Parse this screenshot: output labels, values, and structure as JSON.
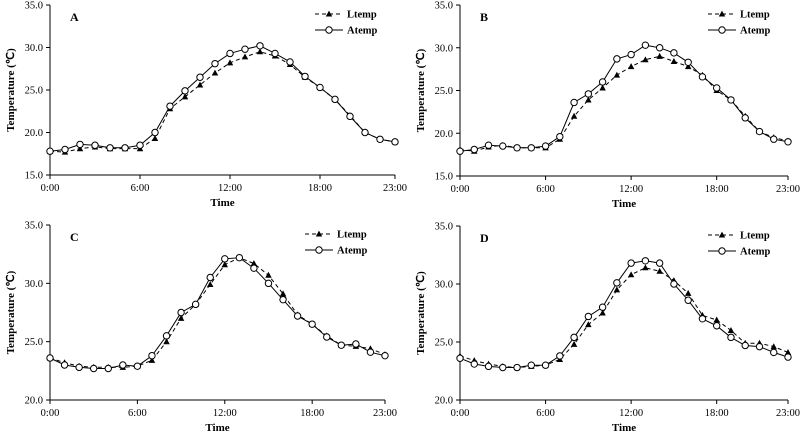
{
  "chart_data": [
    {
      "type": "line",
      "panel_label": "A",
      "xlabel": "Time",
      "ylabel": "Temperature (℃)",
      "ylim": [
        15,
        35
      ],
      "yticks": [
        "15.0",
        "20.0",
        "25.0",
        "30.0",
        "35.0"
      ],
      "xlim": [
        0,
        23
      ],
      "xticks": [
        0,
        6,
        12,
        18,
        23
      ],
      "xtick_labels": [
        "0:00",
        "6:00",
        "12:00",
        "18:00",
        "23:00"
      ],
      "grid": false,
      "legend_position": "top-right",
      "series": [
        {
          "name": "Ltemp",
          "style": "dashed-triangle",
          "x": [
            0,
            1,
            2,
            3,
            4,
            5,
            6,
            7,
            8,
            9,
            10,
            11,
            12,
            13,
            14,
            15,
            16,
            17,
            18,
            19,
            20,
            21,
            22,
            23
          ],
          "values": [
            17.8,
            17.7,
            18.1,
            18.3,
            18.1,
            18.1,
            18.1,
            19.3,
            22.8,
            24.2,
            25.6,
            27.0,
            28.2,
            28.9,
            29.5,
            29.0,
            28.0,
            26.5,
            25.3,
            23.9,
            22.0,
            20.0,
            19.2,
            18.9
          ]
        },
        {
          "name": "Atemp",
          "style": "solid-circle",
          "x": [
            0,
            1,
            2,
            3,
            4,
            5,
            6,
            7,
            8,
            9,
            10,
            11,
            12,
            13,
            14,
            15,
            16,
            17,
            18,
            19,
            20,
            21,
            22,
            23
          ],
          "values": [
            17.8,
            18.0,
            18.6,
            18.5,
            18.2,
            18.2,
            18.5,
            20.0,
            23.1,
            24.9,
            26.5,
            28.1,
            29.3,
            29.8,
            30.2,
            29.3,
            28.3,
            26.6,
            25.3,
            23.9,
            21.9,
            20.0,
            19.2,
            18.9
          ]
        }
      ]
    },
    {
      "type": "line",
      "panel_label": "B",
      "xlabel": "Time",
      "ylabel": "Temperature (℃)",
      "ylim": [
        15,
        35
      ],
      "yticks": [
        "15.0",
        "20.0",
        "25.0",
        "30.0",
        "35.0"
      ],
      "xlim": [
        0,
        23
      ],
      "xticks": [
        0,
        6,
        12,
        18,
        23
      ],
      "xtick_labels": [
        "0:00",
        "6:00",
        "12:00",
        "18:00",
        "23:00"
      ],
      "grid": false,
      "legend_position": "top-right",
      "series": [
        {
          "name": "Ltemp",
          "style": "dashed-triangle",
          "x": [
            0,
            1,
            2,
            3,
            4,
            5,
            6,
            7,
            8,
            9,
            10,
            11,
            12,
            13,
            14,
            15,
            16,
            17,
            18,
            19,
            20,
            21,
            22,
            23
          ],
          "values": [
            18.1,
            17.9,
            18.4,
            18.6,
            18.3,
            18.3,
            18.3,
            19.3,
            22.0,
            23.9,
            25.3,
            26.8,
            27.8,
            28.6,
            29.0,
            28.4,
            27.8,
            26.8,
            25.0,
            23.9,
            22.0,
            20.2,
            19.5,
            19.1
          ]
        },
        {
          "name": "Atemp",
          "style": "solid-circle",
          "x": [
            0,
            1,
            2,
            3,
            4,
            5,
            6,
            7,
            8,
            9,
            10,
            11,
            12,
            13,
            14,
            15,
            16,
            17,
            18,
            19,
            20,
            21,
            22,
            23
          ],
          "values": [
            17.9,
            18.1,
            18.6,
            18.5,
            18.3,
            18.3,
            18.5,
            19.6,
            23.6,
            24.6,
            26.0,
            28.7,
            29.2,
            30.3,
            30.0,
            29.4,
            28.3,
            26.6,
            25.3,
            23.9,
            21.8,
            20.2,
            19.3,
            19.0
          ]
        }
      ]
    },
    {
      "type": "line",
      "panel_label": "C",
      "xlabel": "Time",
      "ylabel": "Temperature (℃)",
      "ylim": [
        20,
        35
      ],
      "yticks": [
        "20.0",
        "25.0",
        "30.0",
        "35.0"
      ],
      "xlim": [
        0,
        23
      ],
      "xticks": [
        0,
        6,
        12,
        18,
        23
      ],
      "xtick_labels": [
        "0:00",
        "6:00",
        "12:00",
        "18:00",
        "23:00"
      ],
      "grid": false,
      "legend_position": "top-right",
      "series": [
        {
          "name": "Ltemp",
          "style": "dashed-triangle",
          "x": [
            0,
            1,
            2,
            3,
            4,
            5,
            6,
            7,
            8,
            9,
            10,
            11,
            12,
            13,
            14,
            15,
            16,
            17,
            18,
            19,
            20,
            21,
            22,
            23
          ],
          "values": [
            23.6,
            23.2,
            22.9,
            22.8,
            22.8,
            22.8,
            22.9,
            23.4,
            25.0,
            27.0,
            28.2,
            29.9,
            31.6,
            32.2,
            31.7,
            30.7,
            29.1,
            27.3,
            26.5,
            25.5,
            24.7,
            24.6,
            24.4,
            23.9
          ]
        },
        {
          "name": "Atemp",
          "style": "solid-circle",
          "x": [
            0,
            1,
            2,
            3,
            4,
            5,
            6,
            7,
            8,
            9,
            10,
            11,
            12,
            13,
            14,
            15,
            16,
            17,
            18,
            19,
            20,
            21,
            22,
            23
          ],
          "values": [
            23.6,
            23.0,
            22.8,
            22.7,
            22.7,
            23.0,
            22.9,
            23.8,
            25.5,
            27.5,
            28.2,
            30.5,
            32.1,
            32.2,
            31.3,
            30.0,
            28.6,
            27.2,
            26.5,
            25.4,
            24.7,
            24.8,
            24.1,
            23.8
          ]
        }
      ]
    },
    {
      "type": "line",
      "panel_label": "D",
      "xlabel": "Time",
      "ylabel": "Temperature (℃)",
      "ylim": [
        20,
        35
      ],
      "yticks": [
        "20.0",
        "25.0",
        "30.0",
        "35.0"
      ],
      "xlim": [
        0,
        23
      ],
      "xticks": [
        0,
        6,
        12,
        18,
        23
      ],
      "xtick_labels": [
        "0:00",
        "6:00",
        "12:00",
        "18:00",
        "23:00"
      ],
      "grid": false,
      "legend_position": "top-right",
      "series": [
        {
          "name": "Ltemp",
          "style": "dashed-triangle",
          "x": [
            0,
            1,
            2,
            3,
            4,
            5,
            6,
            7,
            8,
            9,
            10,
            11,
            12,
            13,
            14,
            15,
            16,
            17,
            18,
            19,
            20,
            21,
            22,
            23
          ],
          "values": [
            23.8,
            23.4,
            23.1,
            22.9,
            22.8,
            22.9,
            23.0,
            23.5,
            24.8,
            26.5,
            27.5,
            29.5,
            30.8,
            31.4,
            31.1,
            30.3,
            29.2,
            27.3,
            26.9,
            26.0,
            24.9,
            24.9,
            24.6,
            24.1
          ]
        },
        {
          "name": "Atemp",
          "style": "solid-circle",
          "x": [
            0,
            1,
            2,
            3,
            4,
            5,
            6,
            7,
            8,
            9,
            10,
            11,
            12,
            13,
            14,
            15,
            16,
            17,
            18,
            19,
            20,
            21,
            22,
            23
          ],
          "values": [
            23.6,
            23.1,
            22.9,
            22.8,
            22.8,
            23.0,
            23.0,
            23.8,
            25.4,
            27.2,
            28.0,
            30.1,
            31.8,
            32.0,
            31.8,
            30.0,
            28.6,
            27.0,
            26.4,
            25.4,
            24.7,
            24.6,
            24.1,
            23.7
          ]
        }
      ]
    }
  ]
}
